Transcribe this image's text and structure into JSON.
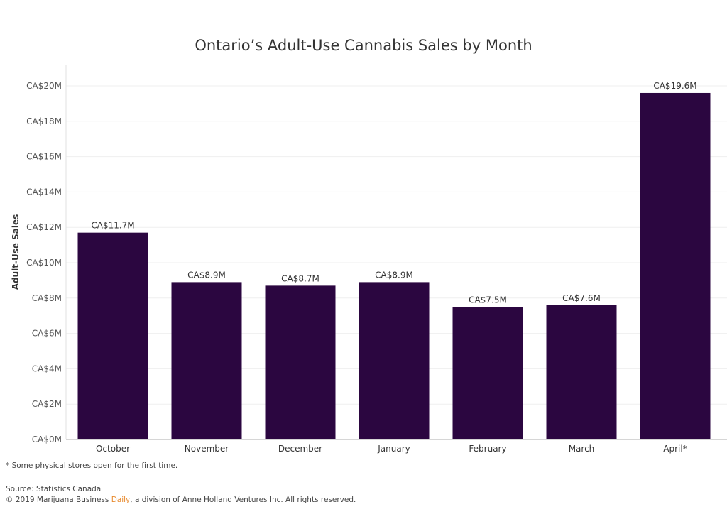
{
  "chart_data": {
    "type": "bar",
    "title": "Ontario’s Adult-Use Cannabis Sales by Month",
    "xlabel": "",
    "ylabel": "Adult-Use Sales",
    "categories": [
      "October",
      "November",
      "December",
      "January",
      "February",
      "March",
      "April*"
    ],
    "values": [
      11.7,
      8.9,
      8.7,
      8.9,
      7.5,
      7.6,
      19.6
    ],
    "data_labels": [
      "CA$11.7M",
      "CA$8.9M",
      "CA$8.7M",
      "CA$8.9M",
      "CA$7.5M",
      "CA$7.6M",
      "CA$19.6M"
    ],
    "ylim": [
      0,
      20
    ],
    "y_ticks": [
      0,
      2,
      4,
      6,
      8,
      10,
      12,
      14,
      16,
      18,
      20
    ],
    "y_tick_labels": [
      "CA$0M",
      "CA$2M",
      "CA$4M",
      "CA$6M",
      "CA$8M",
      "CA$10M",
      "CA$12M",
      "CA$14M",
      "CA$16M",
      "CA$18M",
      "CA$20M"
    ],
    "grid": true,
    "bar_color": "#2b0640"
  },
  "footer": {
    "footnote": "* Some physical stores open for the first time.",
    "source": "Source: Statistics Canada",
    "copyright_pre": "© 2019 Marijuana Business ",
    "copyright_accent": "Daily",
    "copyright_post": ", a division of Anne Holland Ventures Inc. All rights reserved."
  }
}
